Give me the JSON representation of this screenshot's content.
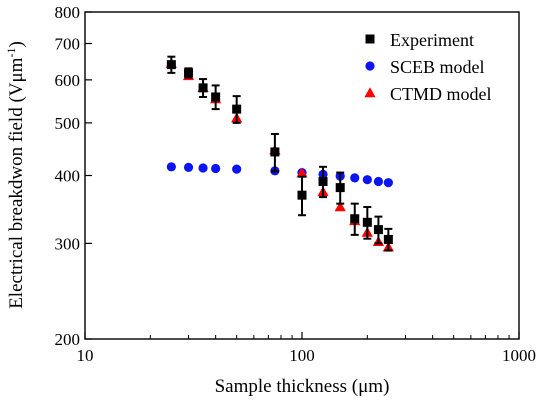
{
  "chart_data": {
    "type": "scatter",
    "xlabel": "Sample thickness (μm)",
    "ylabel": "Electrical breakdwon field (V",
    "ylabel_unit_main": "μm",
    "ylabel_unit_sup": "-1",
    "ylabel_close": ")",
    "x_scale": "log",
    "y_scale": "log",
    "xlim": [
      10,
      1000
    ],
    "ylim": [
      200,
      800
    ],
    "x_ticks": [
      10,
      100,
      1000
    ],
    "x_tick_labels": [
      "10",
      "100",
      "1000"
    ],
    "y_ticks": [
      200,
      300,
      400,
      500,
      600,
      700,
      800
    ],
    "y_tick_labels": [
      "200",
      "300",
      "400",
      "500",
      "600",
      "700",
      "800"
    ],
    "grid": false,
    "legend_position": "top-right",
    "series": [
      {
        "name": "Experiment",
        "marker": "square",
        "color": "#000000",
        "points": [
          {
            "x": 25,
            "y": 640,
            "err": 22
          },
          {
            "x": 30,
            "y": 618,
            "err": 12
          },
          {
            "x": 35,
            "y": 580,
            "err": 22
          },
          {
            "x": 40,
            "y": 558,
            "err": 28
          },
          {
            "x": 50,
            "y": 530,
            "err": 30
          },
          {
            "x": 75,
            "y": 442,
            "err": 35
          },
          {
            "x": 100,
            "y": 368,
            "err": 30
          },
          {
            "x": 125,
            "y": 390,
            "err": 25
          },
          {
            "x": 150,
            "y": 380,
            "err": 25
          },
          {
            "x": 175,
            "y": 333,
            "err": 22
          },
          {
            "x": 200,
            "y": 328,
            "err": 22
          },
          {
            "x": 225,
            "y": 318,
            "err": 18
          },
          {
            "x": 250,
            "y": 305,
            "err": 14
          }
        ]
      },
      {
        "name": "SCEB model",
        "marker": "circle",
        "color": "#0a14f5",
        "points": [
          {
            "x": 25,
            "y": 415
          },
          {
            "x": 30,
            "y": 414
          },
          {
            "x": 35,
            "y": 413
          },
          {
            "x": 40,
            "y": 412
          },
          {
            "x": 50,
            "y": 411
          },
          {
            "x": 75,
            "y": 408
          },
          {
            "x": 100,
            "y": 405
          },
          {
            "x": 125,
            "y": 402
          },
          {
            "x": 150,
            "y": 399
          },
          {
            "x": 175,
            "y": 396
          },
          {
            "x": 200,
            "y": 393
          },
          {
            "x": 225,
            "y": 390
          },
          {
            "x": 250,
            "y": 388
          }
        ]
      },
      {
        "name": "CTMD model",
        "marker": "triangle",
        "color": "#ff0000",
        "points": [
          {
            "x": 25,
            "y": 643
          },
          {
            "x": 30,
            "y": 610
          },
          {
            "x": 35,
            "y": 580
          },
          {
            "x": 40,
            "y": 553
          },
          {
            "x": 50,
            "y": 510
          },
          {
            "x": 75,
            "y": 445
          },
          {
            "x": 100,
            "y": 404
          },
          {
            "x": 125,
            "y": 373
          },
          {
            "x": 150,
            "y": 350
          },
          {
            "x": 175,
            "y": 330
          },
          {
            "x": 200,
            "y": 314
          },
          {
            "x": 225,
            "y": 302
          },
          {
            "x": 250,
            "y": 295
          }
        ]
      }
    ]
  }
}
